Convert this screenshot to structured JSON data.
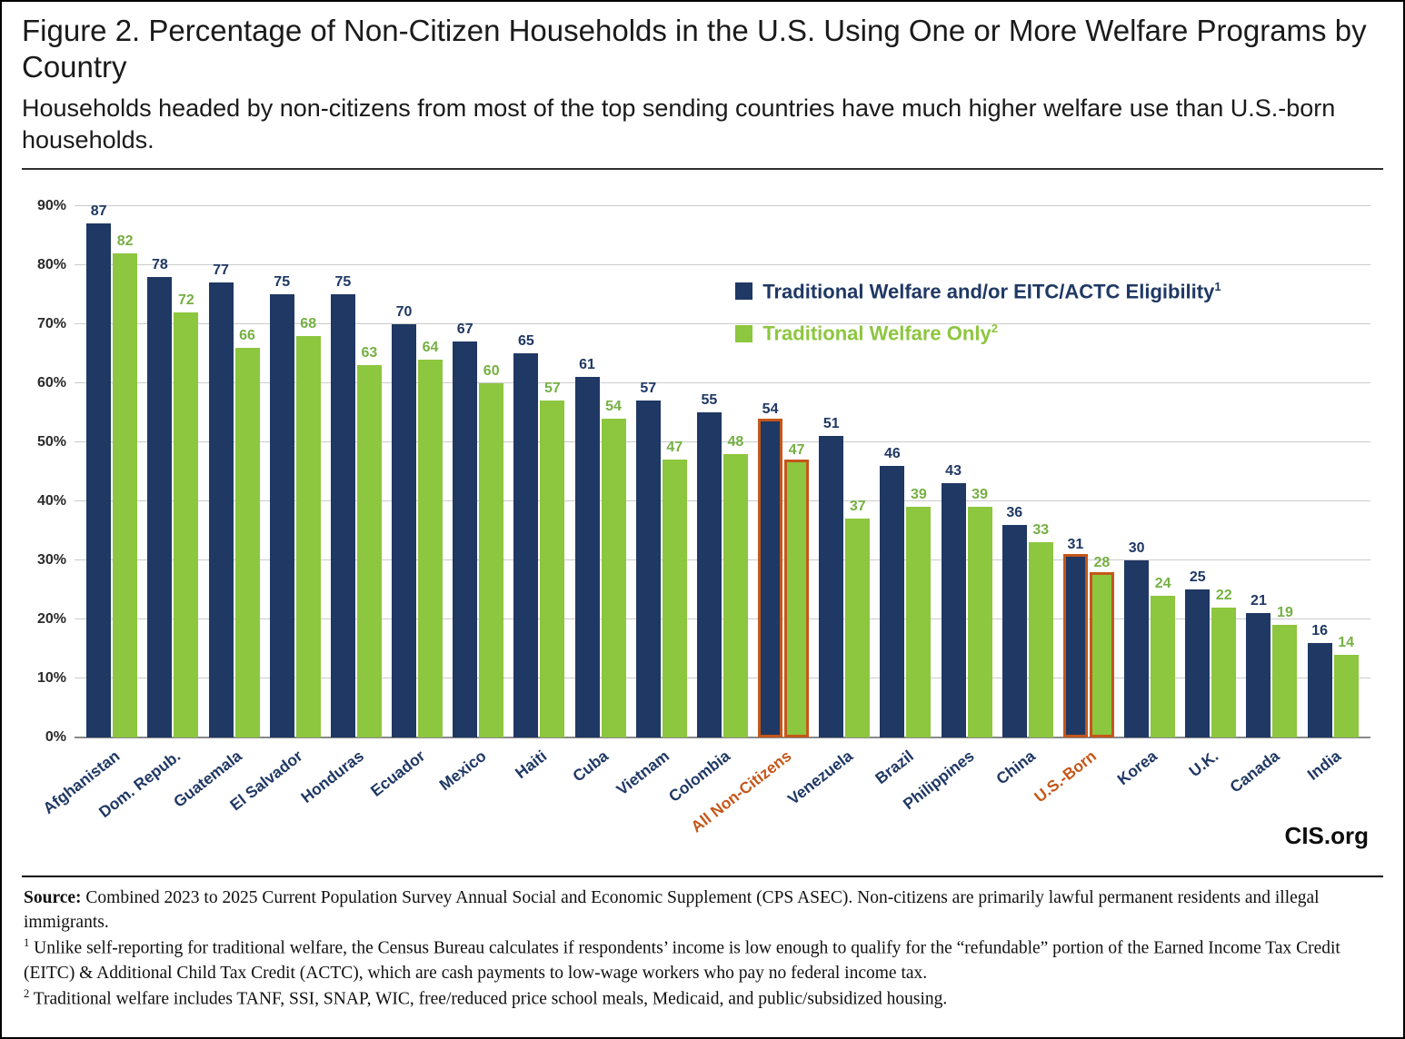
{
  "figure": {
    "title": "Figure 2. Percentage of Non-Citizen Households in the U.S. Using One or More Welfare Programs by Country",
    "subtitle": "Households headed by non-citizens from most of the top sending countries have much higher welfare use than U.S.-born households.",
    "brand": "CIS.org"
  },
  "legend": [
    {
      "label": "Traditional Welfare and/or EITC/ACTC Eligibility",
      "sup": "1",
      "color": "#1F3864"
    },
    {
      "label": "Traditional Welfare Only",
      "sup": "2",
      "color": "#8DC63F"
    }
  ],
  "chart_data": {
    "type": "bar",
    "title": "Figure 2. Percentage of Non-Citizen Households in the U.S. Using One or More Welfare Programs by Country",
    "xlabel": "",
    "ylabel": "",
    "ylim": [
      0,
      90
    ],
    "yticks": [
      "0%",
      "10%",
      "20%",
      "30%",
      "40%",
      "50%",
      "60%",
      "70%",
      "80%",
      "90%"
    ],
    "grid": true,
    "legend_position": "upper-right-inside",
    "categories": [
      "Afghanistan",
      "Dom. Repub.",
      "Guatemala",
      "El Salvador",
      "Honduras",
      "Ecuador",
      "Mexico",
      "Haiti",
      "Cuba",
      "Vietnam",
      "Colombia",
      "All Non-Citizens",
      "Venezuela",
      "Brazil",
      "Philippines",
      "China",
      "U.S.-Born",
      "Korea",
      "U.K.",
      "Canada",
      "India"
    ],
    "series": [
      {
        "name": "Traditional Welfare and/or EITC/ACTC Eligibility¹",
        "color": "#1F3864",
        "label_color": "#1F3864",
        "values": [
          87,
          78,
          77,
          75,
          75,
          70,
          67,
          65,
          61,
          57,
          55,
          54,
          51,
          46,
          43,
          36,
          31,
          30,
          25,
          21,
          16
        ]
      },
      {
        "name": "Traditional Welfare Only²",
        "color": "#8DC63F",
        "label_color": "#76B043",
        "values": [
          82,
          72,
          66,
          68,
          63,
          64,
          60,
          57,
          54,
          47,
          48,
          47,
          37,
          39,
          39,
          33,
          28,
          24,
          22,
          19,
          14
        ]
      }
    ],
    "highlighted_categories": [
      "All Non-Citizens",
      "U.S.-Born"
    ],
    "highlight_color": "#C4571A"
  },
  "footnotes": {
    "source_label": "Source:",
    "source_text": " Combined 2023 to 2025 Current Population Survey Annual Social and Economic Supplement (CPS ASEC). Non-citizens are primarily lawful permanent residents and illegal immigrants.",
    "note1_sup": "1",
    "note1": " Unlike self-reporting for traditional welfare, the Census Bureau calculates if respondents’ income is low enough to qualify for the “refundable” portion of the Earned Income Tax Credit (EITC) & Additional Child Tax Credit (ACTC), which are cash payments to low-wage workers who pay no federal income tax.",
    "note2_sup": "2",
    "note2": " Traditional welfare includes TANF, SSI, SNAP, WIC, free/reduced price school meals, Medicaid, and public/subsidized housing."
  }
}
